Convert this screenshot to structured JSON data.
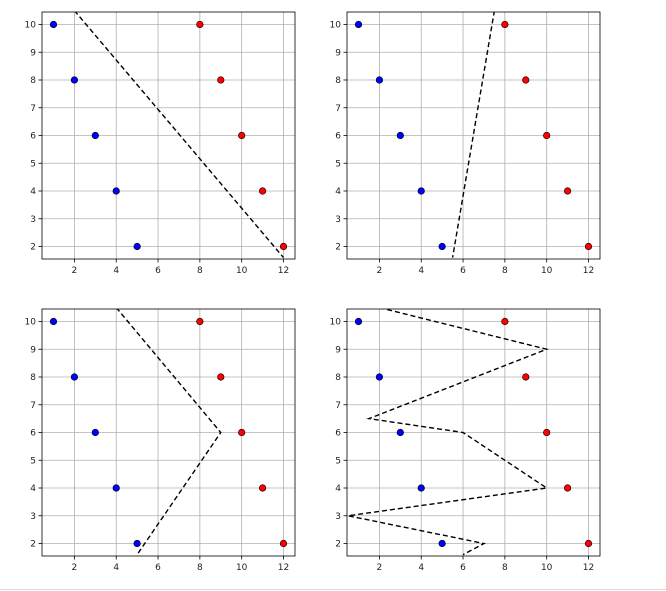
{
  "figure": {
    "colors": {
      "class_a": "#0000ff",
      "class_b": "#ff0000",
      "edge": "#000000",
      "grid": "#b0b0b0",
      "boundary": "#000000"
    }
  },
  "chart_data": [
    {
      "type": "scatter",
      "title": "",
      "xlabel": "",
      "ylabel": "",
      "xlim": [
        0.45,
        12.55
      ],
      "ylim": [
        1.55,
        10.45
      ],
      "xticks": [
        2,
        4,
        6,
        8,
        10,
        12
      ],
      "yticks": [
        2,
        3,
        4,
        5,
        6,
        7,
        8,
        9,
        10
      ],
      "grid": true,
      "series": [
        {
          "color": "#0000ff",
          "points": [
            [
              1,
              10
            ],
            [
              2,
              8
            ],
            [
              3,
              6
            ],
            [
              4,
              4
            ],
            [
              5,
              2
            ]
          ]
        },
        {
          "color": "#ff0000",
          "points": [
            [
              8,
              10
            ],
            [
              9,
              8
            ],
            [
              10,
              6
            ],
            [
              11,
              4
            ],
            [
              12,
              2
            ]
          ]
        }
      ],
      "boundary": [
        [
          2,
          10.5
        ],
        [
          12,
          1.6
        ]
      ]
    },
    {
      "type": "scatter",
      "title": "",
      "xlabel": "",
      "ylabel": "",
      "xlim": [
        0.45,
        12.55
      ],
      "ylim": [
        1.55,
        10.45
      ],
      "xticks": [
        2,
        4,
        6,
        8,
        10,
        12
      ],
      "yticks": [
        2,
        3,
        4,
        5,
        6,
        7,
        8,
        9,
        10
      ],
      "grid": true,
      "series": [
        {
          "color": "#0000ff",
          "points": [
            [
              1,
              10
            ],
            [
              2,
              8
            ],
            [
              3,
              6
            ],
            [
              4,
              4
            ],
            [
              5,
              2
            ]
          ]
        },
        {
          "color": "#ff0000",
          "points": [
            [
              8,
              10
            ],
            [
              9,
              8
            ],
            [
              10,
              6
            ],
            [
              11,
              4
            ],
            [
              12,
              2
            ]
          ]
        }
      ],
      "boundary": [
        [
          7.5,
          10.5
        ],
        [
          5.5,
          1.6
        ]
      ]
    },
    {
      "type": "scatter",
      "title": "",
      "xlabel": "",
      "ylabel": "",
      "xlim": [
        0.45,
        12.55
      ],
      "ylim": [
        1.55,
        10.45
      ],
      "xticks": [
        2,
        4,
        6,
        8,
        10,
        12
      ],
      "yticks": [
        2,
        3,
        4,
        5,
        6,
        7,
        8,
        9,
        10
      ],
      "grid": true,
      "series": [
        {
          "color": "#0000ff",
          "points": [
            [
              1,
              10
            ],
            [
              2,
              8
            ],
            [
              3,
              6
            ],
            [
              4,
              4
            ],
            [
              5,
              2
            ]
          ]
        },
        {
          "color": "#ff0000",
          "points": [
            [
              8,
              10
            ],
            [
              9,
              8
            ],
            [
              10,
              6
            ],
            [
              11,
              4
            ],
            [
              12,
              2
            ]
          ]
        }
      ],
      "boundary": [
        [
          4,
          10.5
        ],
        [
          9,
          6
        ],
        [
          5,
          1.6
        ]
      ]
    },
    {
      "type": "scatter",
      "title": "",
      "xlabel": "",
      "ylabel": "",
      "xlim": [
        0.45,
        12.55
      ],
      "ylim": [
        1.55,
        10.45
      ],
      "xticks": [
        2,
        4,
        6,
        8,
        10,
        12
      ],
      "yticks": [
        2,
        3,
        4,
        5,
        6,
        7,
        8,
        9,
        10
      ],
      "grid": true,
      "series": [
        {
          "color": "#0000ff",
          "points": [
            [
              1,
              10
            ],
            [
              2,
              8
            ],
            [
              3,
              6
            ],
            [
              4,
              4
            ],
            [
              5,
              2
            ]
          ]
        },
        {
          "color": "#ff0000",
          "points": [
            [
              8,
              10
            ],
            [
              9,
              8
            ],
            [
              10,
              6
            ],
            [
              11,
              4
            ],
            [
              12,
              2
            ]
          ]
        }
      ],
      "boundary": [
        [
          2,
          10.5
        ],
        [
          10,
          9
        ],
        [
          1.5,
          6.5
        ],
        [
          6,
          6
        ],
        [
          10,
          4
        ],
        [
          0.5,
          3
        ],
        [
          7,
          2
        ],
        [
          6,
          1.6
        ]
      ]
    }
  ]
}
